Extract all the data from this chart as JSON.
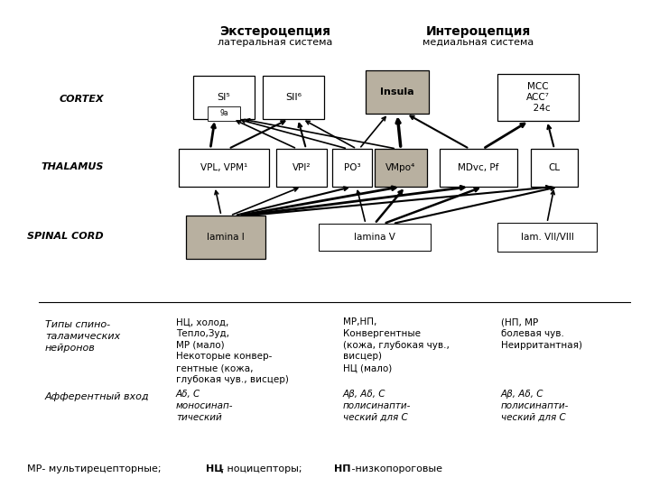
{
  "bg_color": "#ffffff",
  "box_color": "#ffffff",
  "shaded_color": "#b8b0a0",
  "title_left": "Экстероцепция",
  "subtitle_left": "латеральная система",
  "title_right": "Интероцепция",
  "subtitle_right": "медиальная система",
  "label_cortex": "CORTEX",
  "label_thalamus": "THALAMUS",
  "label_spinal": "SPINAL CORD"
}
